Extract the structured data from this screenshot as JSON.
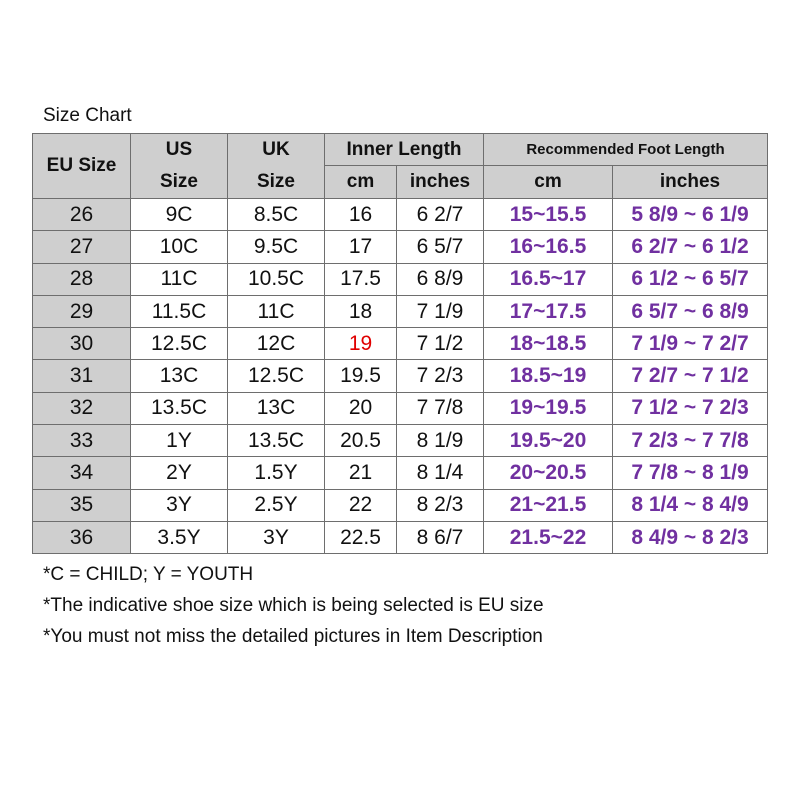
{
  "title": "Size Chart",
  "headers": {
    "eu": "EU Size",
    "us_top": "US",
    "us_bottom": "Size",
    "uk_top": "UK",
    "uk_bottom": "Size",
    "inner_length": "Inner Length",
    "inner_cm": "cm",
    "inner_inches": "inches",
    "recommended": "Recommended Foot Length",
    "rec_cm": "cm",
    "rec_inches": "inches"
  },
  "colors": {
    "header_bg": "#cfcfcf",
    "recommended_text": "#7030a0",
    "highlight_text": "#e00000",
    "border": "#6e6e6e"
  },
  "rows": [
    {
      "eu": "26",
      "us": "9C",
      "uk": "8.5C",
      "cm": "16",
      "in": "6 2/7",
      "rec_cm": "15~15.5",
      "rec_in": "5 8/9 ~ 6 1/9"
    },
    {
      "eu": "27",
      "us": "10C",
      "uk": "9.5C",
      "cm": "17",
      "in": "6 5/7",
      "rec_cm": "16~16.5",
      "rec_in": "6 2/7 ~ 6 1/2"
    },
    {
      "eu": "28",
      "us": "11C",
      "uk": "10.5C",
      "cm": "17.5",
      "in": "6 8/9",
      "rec_cm": "16.5~17",
      "rec_in": "6 1/2 ~ 6 5/7"
    },
    {
      "eu": "29",
      "us": "11.5C",
      "uk": "11C",
      "cm": "18",
      "in": "7 1/9",
      "rec_cm": "17~17.5",
      "rec_in": "6 5/7 ~ 6 8/9"
    },
    {
      "eu": "30",
      "us": "12.5C",
      "uk": "12C",
      "cm": "19",
      "in": "7 1/2",
      "rec_cm": "18~18.5",
      "rec_in": "7 1/9 ~ 7 2/7",
      "cm_highlight": true
    },
    {
      "eu": "31",
      "us": "13C",
      "uk": "12.5C",
      "cm": "19.5",
      "in": "7 2/3",
      "rec_cm": "18.5~19",
      "rec_in": "7 2/7 ~ 7 1/2"
    },
    {
      "eu": "32",
      "us": "13.5C",
      "uk": "13C",
      "cm": "20",
      "in": "7 7/8",
      "rec_cm": "19~19.5",
      "rec_in": "7 1/2 ~ 7 2/3"
    },
    {
      "eu": "33",
      "us": "1Y",
      "uk": "13.5C",
      "cm": "20.5",
      "in": "8 1/9",
      "rec_cm": "19.5~20",
      "rec_in": "7 2/3 ~ 7 7/8"
    },
    {
      "eu": "34",
      "us": "2Y",
      "uk": "1.5Y",
      "cm": "21",
      "in": "8 1/4",
      "rec_cm": "20~20.5",
      "rec_in": "7 7/8 ~ 8 1/9"
    },
    {
      "eu": "35",
      "us": "3Y",
      "uk": "2.5Y",
      "cm": "22",
      "in": "8 2/3",
      "rec_cm": "21~21.5",
      "rec_in": "8 1/4 ~ 8 4/9"
    },
    {
      "eu": "36",
      "us": "3.5Y",
      "uk": "3Y",
      "cm": "22.5",
      "in": "8 6/7",
      "rec_cm": "21.5~22",
      "rec_in": "8 4/9 ~ 8 2/3"
    }
  ],
  "notes": [
    "*C = CHILD; Y = YOUTH",
    "*The indicative shoe size which is being selected is EU size",
    "*You must not miss the detailed pictures in Item Description"
  ]
}
